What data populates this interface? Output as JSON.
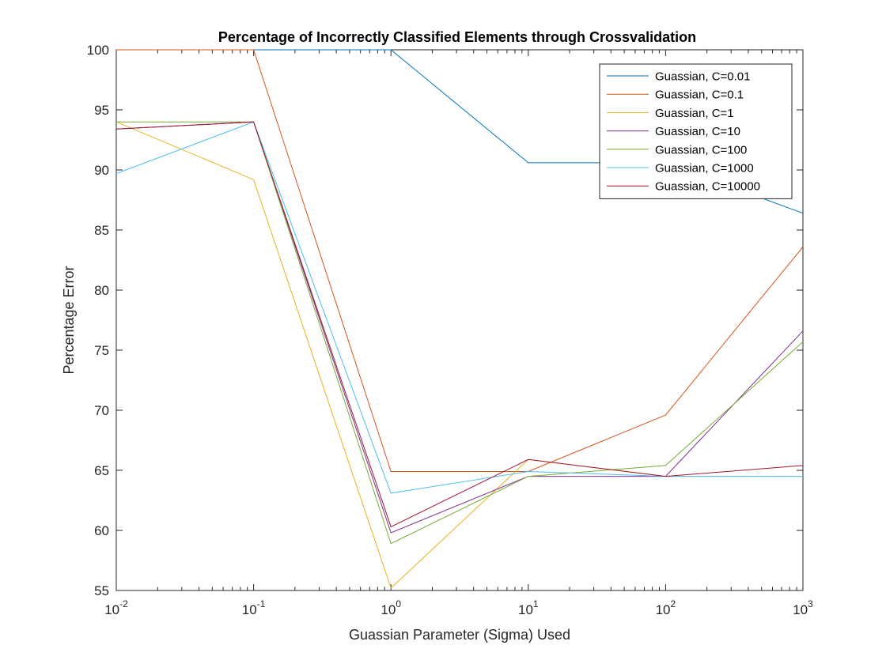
{
  "chart_data": {
    "type": "line",
    "title": "Percentage of Incorrectly Classified Elements through Crossvalidation",
    "xlabel": "Guassian Parameter (Sigma) Used",
    "ylabel": "Percentage Error",
    "xscale": "log",
    "xlim": [
      0.01,
      1000
    ],
    "ylim": [
      55,
      100
    ],
    "yticks": [
      55,
      60,
      65,
      70,
      75,
      80,
      85,
      90,
      95,
      100
    ],
    "xticks": [
      {
        "value": 0.01,
        "base": "10",
        "exp": "-2"
      },
      {
        "value": 0.1,
        "base": "10",
        "exp": "-1"
      },
      {
        "value": 1,
        "base": "10",
        "exp": "0"
      },
      {
        "value": 10,
        "base": "10",
        "exp": "1"
      },
      {
        "value": 100,
        "base": "10",
        "exp": "2"
      },
      {
        "value": 1000,
        "base": "10",
        "exp": "3"
      }
    ],
    "legend_position": "top-right",
    "grid": false,
    "x": [
      0.01,
      0.1,
      1,
      10,
      100,
      1000
    ],
    "series": [
      {
        "name": "Guassian, C=0.01",
        "color": "#0072BD",
        "values": [
          100,
          100,
          100,
          90.6,
          90.6,
          86.4
        ]
      },
      {
        "name": "Guassian, C=0.1",
        "color": "#D95319",
        "values": [
          100,
          100,
          64.9,
          64.9,
          69.6,
          83.6
        ]
      },
      {
        "name": "Guassian, C=1",
        "color": "#EDB120",
        "values": [
          94.0,
          89.2,
          55.2,
          65.9,
          64.5,
          64.5
        ]
      },
      {
        "name": "Guassian, C=10",
        "color": "#7E2F8E",
        "values": [
          93.4,
          94.0,
          59.8,
          64.5,
          64.5,
          76.6
        ]
      },
      {
        "name": "Guassian, C=100",
        "color": "#77AC30",
        "values": [
          94.0,
          94.0,
          58.9,
          64.5,
          65.4,
          75.7
        ]
      },
      {
        "name": "Guassian, C=1000",
        "color": "#4DBEEE",
        "values": [
          89.7,
          94.0,
          63.1,
          64.9,
          64.5,
          64.5
        ]
      },
      {
        "name": "Guassian, C=10000",
        "color": "#A2142F",
        "values": [
          93.4,
          94.0,
          60.3,
          65.9,
          64.5,
          65.4
        ]
      }
    ]
  }
}
